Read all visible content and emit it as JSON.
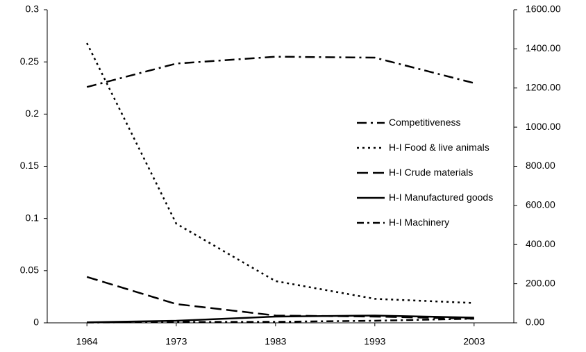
{
  "chart_data": {
    "type": "line",
    "x": [
      1964,
      1973,
      1983,
      1993,
      2003
    ],
    "xlim": [
      1960,
      2007
    ],
    "xticks": [
      1964,
      1973,
      1983,
      1993,
      2003
    ],
    "ylim": [
      0,
      0.3
    ],
    "yticks": [
      0,
      0.05,
      0.1,
      0.15,
      0.2,
      0.25,
      0.3
    ],
    "y2lim": [
      0,
      1600
    ],
    "y2ticks": [
      {
        "value": 0,
        "label": "0.00"
      },
      {
        "value": 200,
        "label": "200.00"
      },
      {
        "value": 400,
        "label": "400.00"
      },
      {
        "value": 600,
        "label": "600.00"
      },
      {
        "value": 800,
        "label": "800.00"
      },
      {
        "value": 1000,
        "label": "1000.00"
      },
      {
        "value": 1200,
        "label": "1200.00"
      },
      {
        "value": 1400,
        "label": "1400.00"
      },
      {
        "value": 1600,
        "label": "1600.00"
      }
    ],
    "legend": "right",
    "series": [
      {
        "name": "Competitiveness",
        "color": "#000000",
        "dash": "14 6 3 6",
        "axis": "y2",
        "values": [
          1205,
          1325,
          1360,
          1355,
          1225
        ]
      },
      {
        "name": "H-I Food & live animals",
        "color": "#000000",
        "dash": "3 5",
        "values": [
          0.268,
          0.095,
          0.04,
          0.023,
          0.019
        ]
      },
      {
        "name": "H-I Crude materials",
        "color": "#000000",
        "dash": "16 7",
        "values": [
          0.044,
          0.018,
          0.007,
          0.006,
          0.004
        ]
      },
      {
        "name": "H-I Manufactured goods",
        "color": "#000000",
        "dash": "none",
        "values": [
          0.0005,
          0.002,
          0.006,
          0.007,
          0.005
        ]
      },
      {
        "name": "H-I Machinery",
        "color": "#000000",
        "dash": "10 5 3 5",
        "values": [
          0.0003,
          0.0008,
          0.001,
          0.002,
          0.004
        ]
      }
    ]
  }
}
